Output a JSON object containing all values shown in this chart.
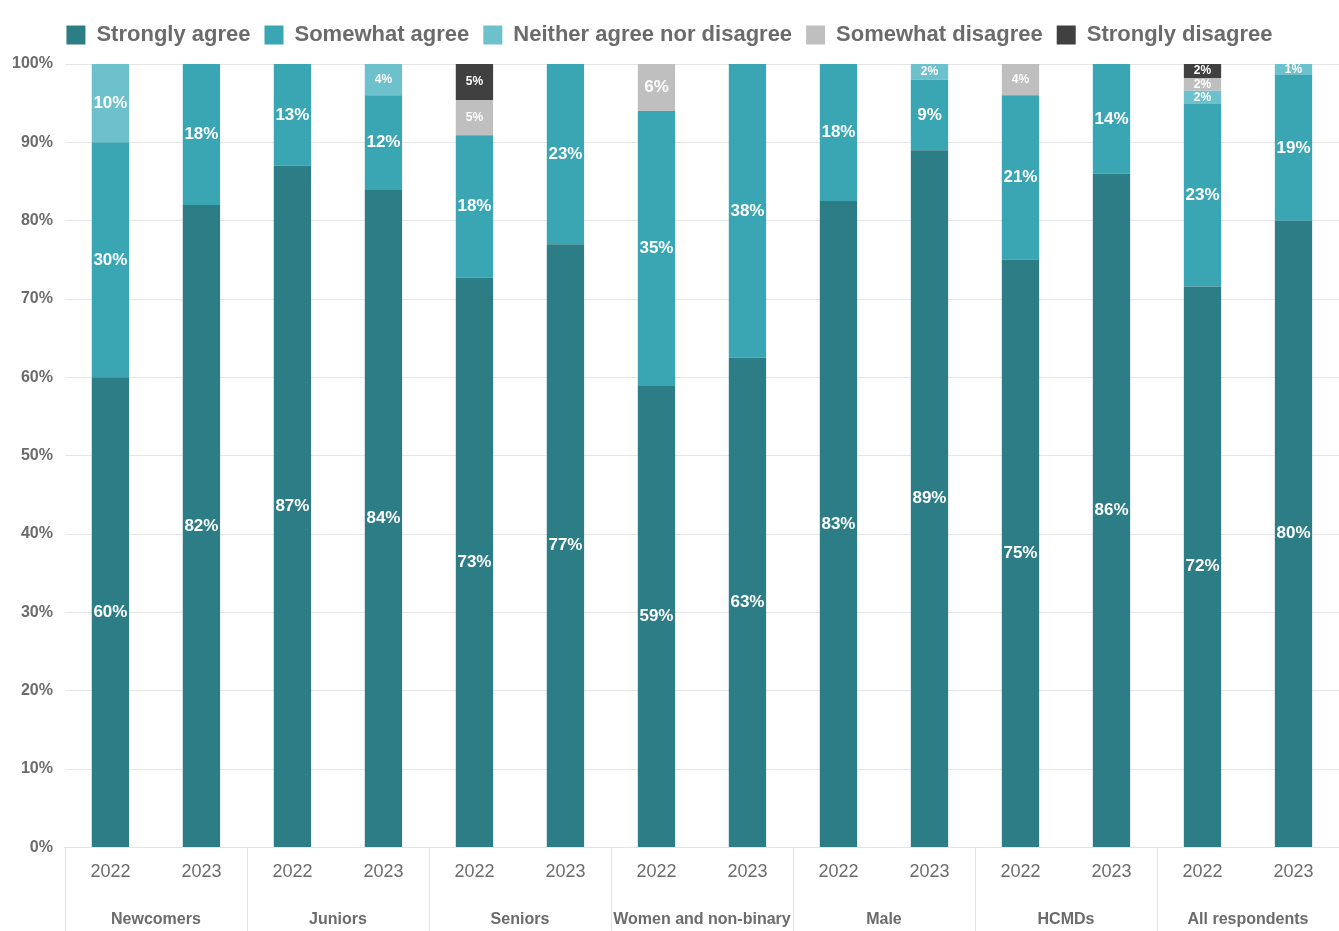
{
  "chart_data": {
    "type": "bar",
    "stacked": true,
    "categories": [
      "2022",
      "2023",
      "2022",
      "2023",
      "2022",
      "2023",
      "2022",
      "2023",
      "2022",
      "2023",
      "2022",
      "2023",
      "2022",
      "2023"
    ],
    "annotations": [
      "Newcomers",
      "Juniors",
      "Seniors",
      "Women and non-binary",
      "Male",
      "HCMDs",
      "All respondents"
    ],
    "series": [
      {
        "name": "Strongly agree",
        "color": "#2d7d87",
        "values": [
          60,
          82,
          87,
          84,
          72.7,
          77,
          59,
          62.5,
          82.5,
          89,
          75,
          86,
          71.6,
          80
        ],
        "value_labels": [
          "60%",
          "82%",
          "87%",
          "84%",
          "73%",
          "77%",
          "59%",
          "63%",
          "83%",
          "89%",
          "75%",
          "86%",
          "72%",
          "80%"
        ]
      },
      {
        "name": "Somewhat agree",
        "color": "#3aa6b4",
        "values": [
          30,
          18,
          13,
          12,
          18.2,
          23,
          35,
          37.5,
          17.5,
          9,
          21,
          14,
          23.3,
          18.6
        ],
        "value_labels": [
          "30%",
          "18%",
          "13%",
          "12%",
          "18%",
          "23%",
          "35%",
          "38%",
          "18%",
          "9%",
          "21%",
          "14%",
          "23%",
          "19%"
        ]
      },
      {
        "name": "Neither agree nor disagree",
        "color": "#6cc1cc",
        "values": [
          10,
          null,
          null,
          4,
          null,
          null,
          null,
          null,
          null,
          2,
          null,
          null,
          1.7,
          1.4
        ],
        "value_labels": [
          "10%",
          null,
          null,
          "4%",
          null,
          null,
          null,
          null,
          null,
          "2%",
          null,
          null,
          "2%",
          "1%"
        ]
      },
      {
        "name": "Somewhat disagree",
        "color": "#bfbfbf",
        "values": [
          null,
          null,
          null,
          null,
          4.5,
          null,
          6,
          null,
          null,
          null,
          4,
          null,
          1.6,
          null
        ],
        "value_labels": [
          null,
          null,
          null,
          null,
          "5%",
          null,
          "6%",
          null,
          null,
          null,
          "4%",
          null,
          "2%",
          null
        ]
      },
      {
        "name": "Strongly disagree",
        "color": "#404040",
        "values": [
          null,
          null,
          null,
          null,
          4.6,
          null,
          null,
          null,
          null,
          null,
          null,
          null,
          1.8,
          null
        ],
        "value_labels": [
          null,
          null,
          null,
          null,
          "5%",
          null,
          null,
          null,
          null,
          null,
          null,
          null,
          "2%",
          null
        ]
      }
    ],
    "ylim": [
      0,
      100
    ],
    "yticks": [
      {
        "value": 0,
        "label": "0%"
      },
      {
        "value": 10,
        "label": "10%"
      },
      {
        "value": 20,
        "label": "20%"
      },
      {
        "value": 30,
        "label": "30%"
      },
      {
        "value": 40,
        "label": "40%"
      },
      {
        "value": 50,
        "label": "50%"
      },
      {
        "value": 60,
        "label": "60%"
      },
      {
        "value": 70,
        "label": "70%"
      },
      {
        "value": 80,
        "label": "80%"
      },
      {
        "value": 90,
        "label": "90%"
      },
      {
        "value": 100,
        "label": "100%"
      }
    ],
    "grid": "y",
    "legend": "top"
  }
}
